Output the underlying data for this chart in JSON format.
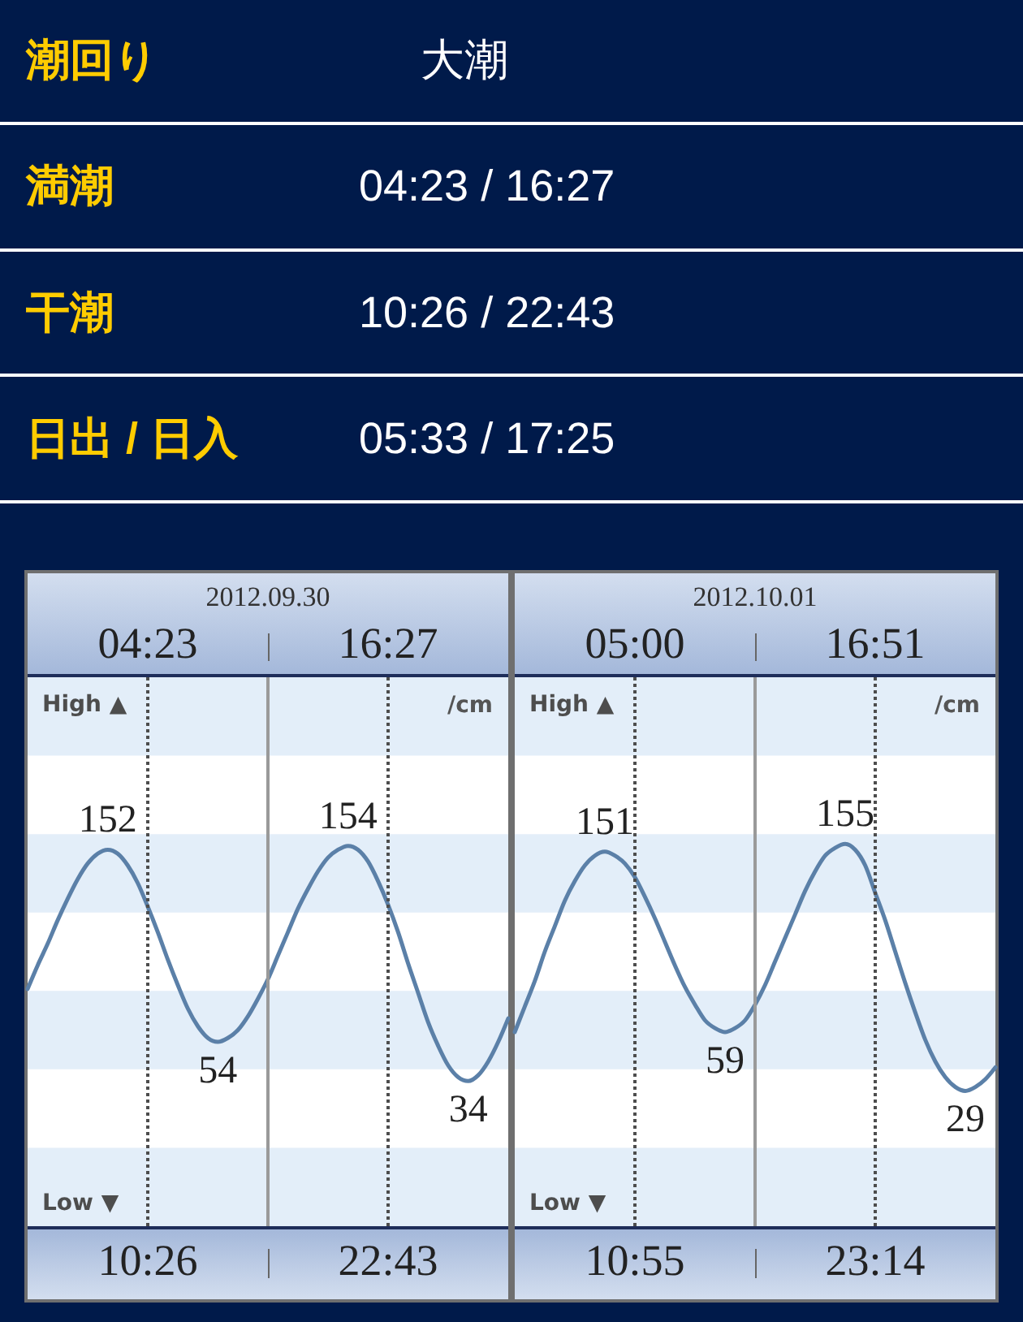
{
  "chart_data": [
    {
      "type": "other",
      "annotations": [
        "潮回り",
        "大潮",
        "満潮",
        "04:23 / 16:27",
        "干潮",
        "10:26 / 22:43",
        "日出 / 日入",
        "05:33 / 17:25"
      ]
    },
    {
      "type": "line",
      "title": "2012.09.30",
      "ylabel": "/cm",
      "annotations": [
        "04:23",
        "16:27",
        "10:26",
        "22:43",
        "High ▲",
        "Low ▼"
      ],
      "color": "#5b80a8",
      "line_style": "solid",
      "ylim": [
        -40,
        240
      ],
      "categories": [
        null,
        null,
        null,
        null,
        null,
        null,
        null,
        null,
        null,
        null,
        null,
        null,
        null,
        null,
        null,
        null,
        null,
        null,
        null,
        null,
        null,
        null,
        null,
        null,
        null,
        null,
        null,
        null,
        null,
        null,
        null,
        null,
        null,
        null,
        null,
        null,
        null,
        null,
        null,
        null,
        null,
        null,
        null,
        null,
        null,
        null,
        null,
        null,
        null
      ],
      "values": [
        81,
        93,
        104,
        116,
        127,
        137,
        145,
        150,
        152,
        150,
        144,
        135,
        123,
        110,
        96,
        83,
        71,
        62,
        56,
        54,
        56,
        60,
        67,
        76,
        86,
        98,
        110,
        122,
        132,
        141,
        148,
        152,
        154,
        152,
        146,
        136,
        124,
        110,
        94,
        79,
        64,
        52,
        42,
        36,
        34,
        37,
        44,
        54,
        66
      ],
      "value_labels": [
        null,
        null,
        null,
        null,
        null,
        null,
        null,
        null,
        "152",
        null,
        null,
        null,
        null,
        null,
        null,
        null,
        null,
        null,
        null,
        "54",
        null,
        null,
        null,
        null,
        null,
        null,
        null,
        null,
        null,
        null,
        null,
        null,
        "154",
        null,
        null,
        null,
        null,
        null,
        null,
        null,
        null,
        null,
        null,
        null,
        "34",
        null,
        null,
        null,
        null
      ],
      "bands": [
        {
          "axis": "y",
          "from": 200,
          "to": 240,
          "color": "#e3eef9"
        },
        {
          "axis": "y",
          "from": 120,
          "to": 160,
          "color": "#e3eef9"
        },
        {
          "axis": "y",
          "from": 40,
          "to": 80,
          "color": "#e3eef9"
        },
        {
          "axis": "y",
          "from": -40,
          "to": 0,
          "color": "#e3eef9"
        }
      ]
    },
    {
      "type": "line",
      "title": "2012.10.01",
      "ylabel": "/cm",
      "annotations": [
        "05:00",
        "16:51",
        "10:55",
        "23:14",
        "High ▲",
        "Low ▼"
      ],
      "color": "#5b80a8",
      "line_style": "solid",
      "ylim": [
        -40,
        240
      ],
      "categories": [
        null,
        null,
        null,
        null,
        null,
        null,
        null,
        null,
        null,
        null,
        null,
        null,
        null,
        null,
        null,
        null,
        null,
        null,
        null,
        null,
        null,
        null,
        null,
        null,
        null,
        null,
        null,
        null,
        null,
        null,
        null,
        null,
        null,
        null,
        null,
        null,
        null,
        null,
        null,
        null,
        null,
        null,
        null,
        null,
        null,
        null,
        null,
        null,
        null
      ],
      "values": [
        59,
        72,
        85,
        100,
        113,
        126,
        136,
        144,
        149,
        151,
        149,
        145,
        138,
        128,
        117,
        105,
        93,
        82,
        73,
        65,
        61,
        59,
        61,
        65,
        73,
        83,
        95,
        107,
        119,
        131,
        141,
        149,
        153,
        155,
        152,
        144,
        130,
        116,
        100,
        84,
        69,
        55,
        44,
        36,
        31,
        29,
        31,
        35,
        41
      ],
      "value_labels": [
        null,
        null,
        null,
        null,
        null,
        null,
        null,
        null,
        null,
        "151",
        null,
        null,
        null,
        null,
        null,
        null,
        null,
        null,
        null,
        null,
        null,
        "59",
        null,
        null,
        null,
        null,
        null,
        null,
        null,
        null,
        null,
        null,
        null,
        "155",
        null,
        null,
        null,
        null,
        null,
        null,
        null,
        null,
        null,
        null,
        null,
        "29",
        null,
        null,
        null
      ],
      "bands": [
        {
          "axis": "y",
          "from": 200,
          "to": 240,
          "color": "#e3eef9"
        },
        {
          "axis": "y",
          "from": 120,
          "to": 160,
          "color": "#e3eef9"
        },
        {
          "axis": "y",
          "from": 40,
          "to": 80,
          "color": "#e3eef9"
        },
        {
          "axis": "y",
          "from": -40,
          "to": 0,
          "color": "#e3eef9"
        }
      ]
    }
  ]
}
